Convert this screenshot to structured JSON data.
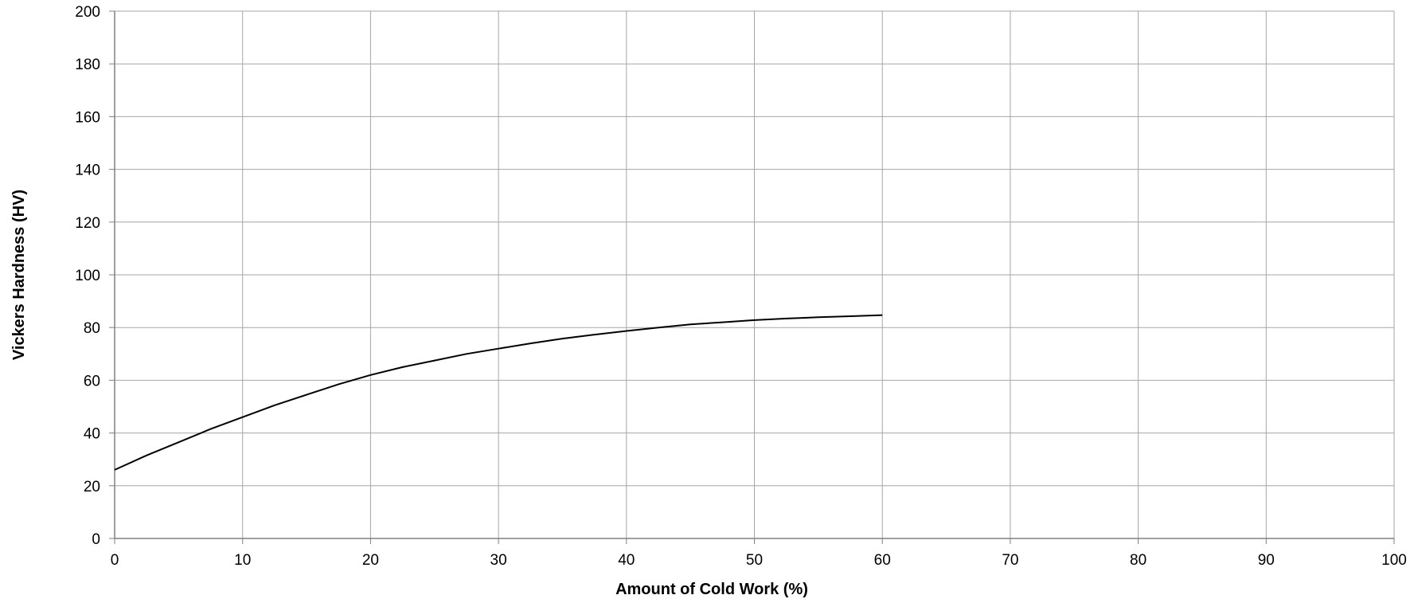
{
  "chart_data": {
    "type": "line",
    "title": "",
    "xlabel": "Amount of Cold Work (%)",
    "ylabel": "Vickers Hardness (HV)",
    "xlim": [
      0,
      100
    ],
    "ylim": [
      0,
      200
    ],
    "x_ticks": [
      0,
      10,
      20,
      30,
      40,
      50,
      60,
      70,
      80,
      90,
      100
    ],
    "y_ticks": [
      0,
      20,
      40,
      60,
      80,
      100,
      120,
      140,
      160,
      180,
      200
    ],
    "grid": true,
    "legend": "none",
    "colors": {
      "line": "#000000",
      "grid": "#a6a6a6",
      "axis": "#808080"
    },
    "series": [
      {
        "x": [
          0,
          2.5,
          5,
          7.5,
          10,
          12.5,
          15,
          17.5,
          20,
          22.5,
          25,
          27.5,
          30,
          32.5,
          35,
          37.5,
          40,
          42.5,
          45,
          47.5,
          50,
          52.5,
          55,
          57.5,
          60
        ],
        "values": [
          26,
          31.5,
          36.5,
          41.5,
          46,
          50.5,
          54.5,
          58.5,
          62,
          65,
          67.5,
          70,
          72,
          74,
          75.8,
          77.3,
          78.7,
          80,
          81.2,
          82,
          82.8,
          83.4,
          83.9,
          84.3,
          84.7
        ]
      }
    ]
  }
}
